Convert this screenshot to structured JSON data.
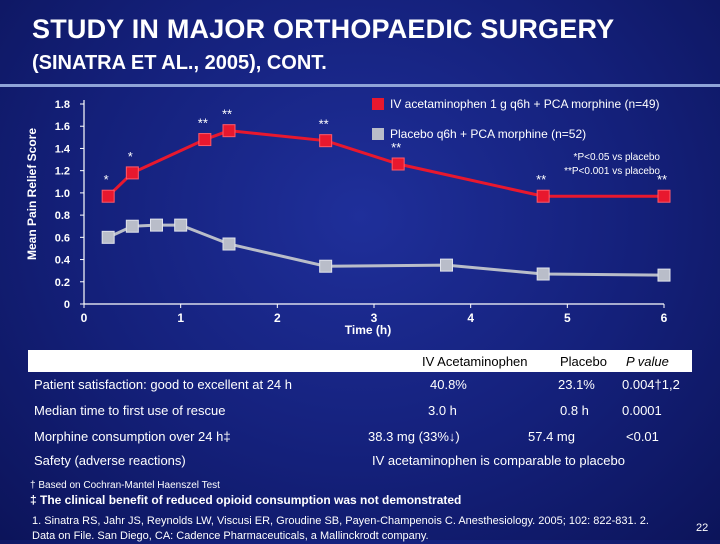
{
  "slide": {
    "title": "STUDY IN MAJOR ORTHOPAEDIC SURGERY",
    "subtitle": "(SINATRA ET AL., 2005), CONT.",
    "page_number": "22"
  },
  "chart_data": {
    "type": "line",
    "ylabel": "Mean Pain Relief Score",
    "xlabel": "Time (h)",
    "y_ticks": [
      "0",
      "0.2",
      "0.4",
      "0.6",
      "0.8",
      "1.0",
      "1.2",
      "1.4",
      "1.6",
      "1.8"
    ],
    "x_ticks": [
      "0",
      "1",
      "2",
      "3",
      "4",
      "5",
      "6"
    ],
    "ylim": [
      0,
      1.8
    ],
    "xlim": [
      0,
      6
    ],
    "grid": false,
    "legend_position": "top-right",
    "series": [
      {
        "name": "IV acetaminophen 1 g q6h + PCA morphine (n=49)",
        "color": "#e8182e",
        "marker": "square",
        "x": [
          0.25,
          0.5,
          1.25,
          1.5,
          2.5,
          3.25,
          4.75,
          6.0
        ],
        "y": [
          0.97,
          1.18,
          1.48,
          1.56,
          1.47,
          1.26,
          0.97,
          0.97
        ],
        "point_labels": [
          "*",
          "*",
          "**",
          "**",
          "**",
          "**",
          "**",
          "**"
        ]
      },
      {
        "name": "Placebo q6h + PCA morphine (n=52)",
        "color": "#b9bdc9",
        "marker": "square",
        "x": [
          0.25,
          0.5,
          0.75,
          1.0,
          1.5,
          2.5,
          3.75,
          4.75,
          6.0
        ],
        "y": [
          0.6,
          0.7,
          0.71,
          0.71,
          0.54,
          0.34,
          0.35,
          0.27,
          0.26
        ]
      }
    ],
    "annotations": [
      "*P<0.05 vs placebo",
      "**P<0.001 vs placebo"
    ]
  },
  "table": {
    "headers": [
      "",
      "IV Acetaminophen",
      "Placebo",
      "P value"
    ],
    "rows": [
      [
        "Patient satisfaction: good to excellent at 24 h",
        "40.8%",
        "23.1%",
        "0.004†1,2"
      ],
      [
        "Median time to first use of rescue",
        "3.0 h",
        "0.8 h",
        "0.0001"
      ],
      [
        "Morphine consumption over 24 h‡",
        "38.3 mg (33%↓)",
        "57.4 mg",
        "<0.01"
      ],
      [
        "Safety (adverse reactions)",
        "IV acetaminophen is comparable to placebo"
      ]
    ]
  },
  "footnotes": {
    "dagger": "† Based on Cochran-Mantel Haenszel Test",
    "double_dagger": "‡ The clinical benefit of reduced opioid consumption was not demonstrated"
  },
  "references": "1. Sinatra RS, Jahr JS, Reynolds LW, Viscusi ER, Groudine SB, Payen-Champenois C. Anesthesiology. 2005; 102: 822-831. 2. Data on File. San Diego, CA: Cadence Pharmaceuticals, a Mallinckrodt company."
}
